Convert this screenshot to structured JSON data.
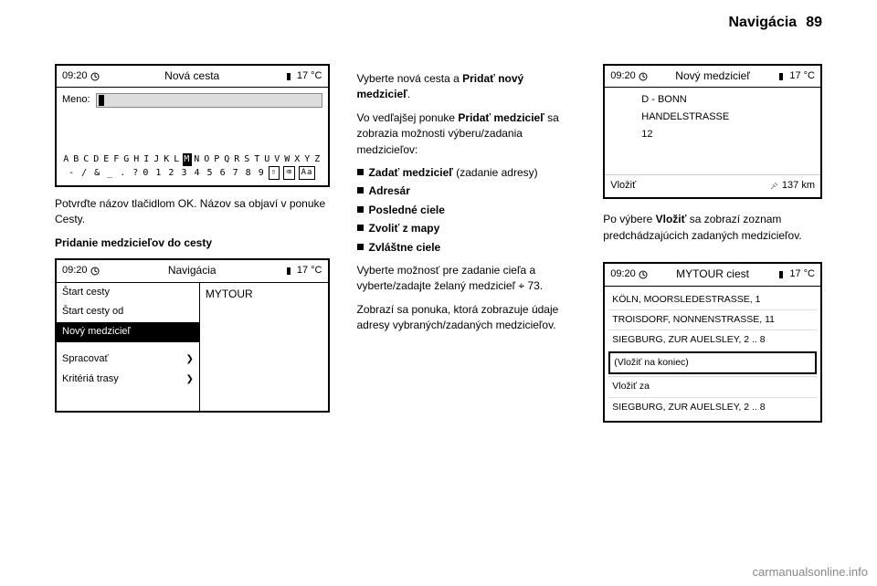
{
  "header": {
    "title": "Navigácia",
    "page_num": "89"
  },
  "status": {
    "time": "09:20",
    "temp": "17 °C"
  },
  "col1": {
    "screen1": {
      "title": "Nová cesta",
      "input_label": "Meno:",
      "kb_row1": [
        "A",
        "B",
        "C",
        "D",
        "E",
        "F",
        "G",
        "H",
        "I",
        "J",
        "K",
        "L",
        "M",
        "N",
        "O",
        "P",
        "Q",
        "R",
        "S",
        "T",
        "U",
        "V",
        "W",
        "X",
        "Y",
        "Z"
      ],
      "kb_row2_left": "-  /  &  _  .  ?",
      "kb_row2_mid": "0 1 2 3 4 5 6 7 8 9",
      "kb_icon1": "⇧",
      "kb_icon2": "⌫",
      "kb_icon3": "Aa"
    },
    "text1": "Potvrďte názov tlačidlom OK. Názov sa objaví v ponuke Cesty.",
    "text2": "Pridanie medzicieľov do cesty",
    "screen2": {
      "title": "Navigácia",
      "left_items": [
        "Štart cesty",
        "Štart cesty od",
        "Nový medzicieľ",
        "",
        "Spracovať",
        "Kritériá trasy"
      ],
      "hl_index": 2,
      "arrow_indices": [
        4,
        5
      ],
      "right_text": "MYTOUR"
    }
  },
  "col2": {
    "p1a": "Vyberte nová cesta a ",
    "p1b": "Pridať nový medzicieľ",
    "p1c": ".",
    "p2a": "Vo vedľajšej ponuke ",
    "p2b": "Pridať medzicieľ",
    "p2c": " sa zobrazia možnosti výberu/zadania medzicieľov:",
    "bullets": [
      {
        "bold": "Zadať medzicieľ",
        "paren": " (zadanie adresy)"
      },
      {
        "bold": "Adresár",
        "paren": ""
      },
      {
        "bold": "Posledné ciele",
        "paren": ""
      },
      {
        "bold": "Zvoliť z mapy",
        "paren": ""
      },
      {
        "bold": "Zvláštne ciele",
        "paren": ""
      }
    ],
    "p3": "Vyberte možnosť pre zadanie cieľa a vyberte/zadajte želaný medzicieľ ",
    "p3ref": "⌖ 73.",
    "p4": "Zobrazí sa ponuka, ktorá zobrazuje údaje adresy vybraných/zadaných medzicieľov."
  },
  "col3": {
    "screen1": {
      "title": "Nový medzicieľ",
      "lines": [
        "D - BONN",
        "HANDELSTRASSE",
        "12"
      ],
      "footer_left": "Vložiť",
      "footer_right": "137 km"
    },
    "text1a": "Po výbere ",
    "text1b": "Vložiť",
    "text1c": " sa zobrazí zoznam predchádzajúcich zadaných medzicieľov.",
    "screen2": {
      "title": "MYTOUR ciest",
      "items": [
        "KÖLN, MOORSLEDESTRASSE, 1",
        "TROISDORF, NONNENSTRASSE, 11",
        "SIEGBURG, ZUR AUELSLEY, 2 .. 8",
        "(Vložiť na koniec)",
        "Vložiť za",
        "SIEGBURG, ZUR AUELSLEY, 2 .. 8"
      ],
      "hl_index": 3
    }
  },
  "watermark": "carmanualsonline.info"
}
